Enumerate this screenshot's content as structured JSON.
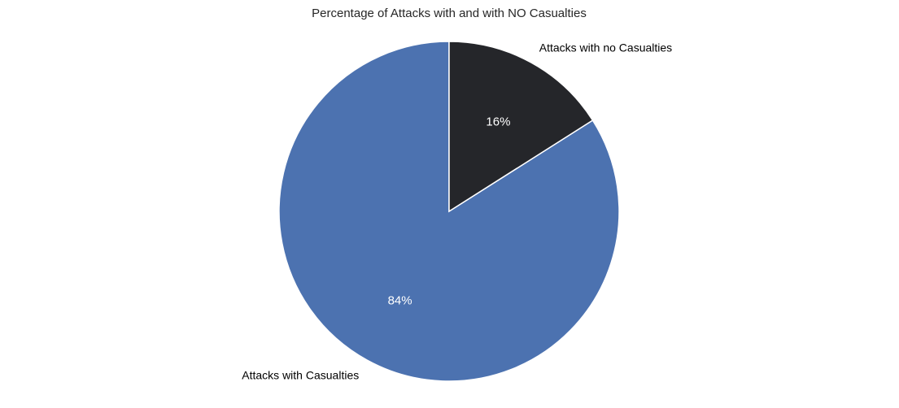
{
  "chart_data": {
    "type": "pie",
    "title": "Percentage of Attacks with and with NO Casualties",
    "slices": [
      {
        "label": "Attacks with Casualties",
        "value": 84,
        "pct_label": "84%",
        "color": "#4c72b0"
      },
      {
        "label": "Attacks with no Casualties",
        "value": 16,
        "pct_label": "16%",
        "color": "#25262a"
      }
    ],
    "start_angle_deg": 90,
    "direction": "counterclockwise",
    "edge_color": "#ffffff"
  }
}
